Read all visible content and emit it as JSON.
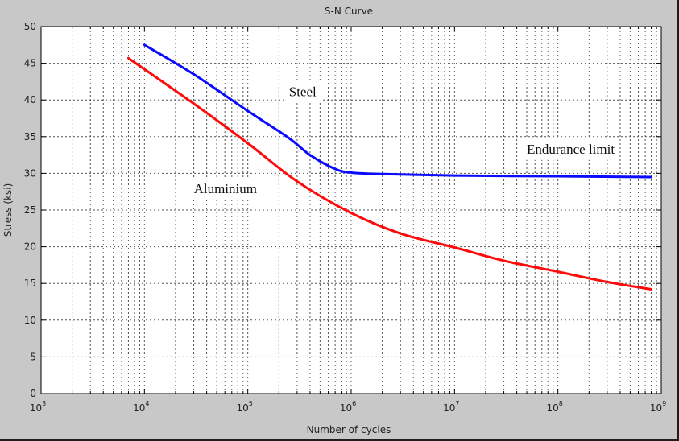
{
  "chart_data": {
    "type": "line",
    "title": "S-N Curve",
    "xlabel": "Number of cycles",
    "ylabel": "Stress (ksi)",
    "xscale": "log",
    "xlim": [
      1000,
      1000000000
    ],
    "ylim": [
      0,
      50
    ],
    "grid": true,
    "background": "#c8c8c8",
    "plot_background": "#ffffff",
    "x_ticks": [
      {
        "base": "10",
        "exp": "3"
      },
      {
        "base": "10",
        "exp": "4"
      },
      {
        "base": "10",
        "exp": "5"
      },
      {
        "base": "10",
        "exp": "6"
      },
      {
        "base": "10",
        "exp": "7"
      },
      {
        "base": "10",
        "exp": "8"
      },
      {
        "base": "10",
        "exp": "9"
      }
    ],
    "y_ticks": [
      "0",
      "5",
      "10",
      "15",
      "20",
      "25",
      "30",
      "35",
      "40",
      "45",
      "50"
    ],
    "series": [
      {
        "color": "#0a0aff",
        "x": [
          10000,
          30000,
          100000,
          250000,
          400000,
          700000,
          1000000,
          2000000,
          10000000,
          100000000,
          800000000
        ],
        "y": [
          47.5,
          43.5,
          38.5,
          34.8,
          32.5,
          30.6,
          30.1,
          29.9,
          29.7,
          29.6,
          29.5
        ]
      },
      {
        "color": "#ff0a0a",
        "x": [
          7000,
          30000,
          100000,
          300000,
          1000000,
          3000000,
          10000000,
          30000000,
          100000000,
          300000000,
          800000000
        ],
        "y": [
          45.7,
          39.5,
          34.1,
          28.9,
          24.6,
          21.8,
          19.9,
          18.1,
          16.6,
          15.2,
          14.2
        ]
      }
    ],
    "annotations": [
      {
        "text": "Steel",
        "x": 250000,
        "y": 40.5
      },
      {
        "text": "Endurance limit",
        "x": 50000000,
        "y": 32.7
      },
      {
        "text": "Aluminium",
        "x": 30000,
        "y": 27.3
      }
    ]
  }
}
